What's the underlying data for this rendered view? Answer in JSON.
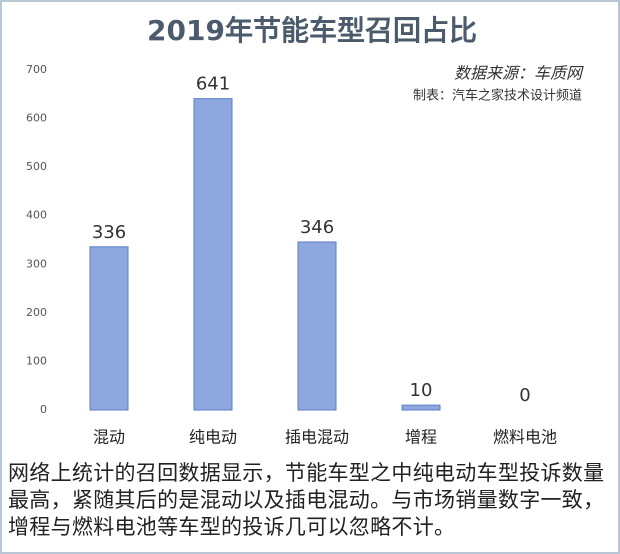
{
  "chart_data": {
    "type": "bar",
    "title": "2019年节能车型召回占比",
    "annotations": [
      "数据来源：车质网",
      "制表：汽车之家技术设计频道"
    ],
    "categories": [
      "混动",
      "纯电动",
      "插电混动",
      "增程",
      "燃料电池"
    ],
    "values": [
      336,
      641,
      346,
      10,
      0
    ],
    "color": "#8ea7de",
    "ylim": [
      0,
      700
    ],
    "yticks": [
      0,
      100,
      200,
      300,
      400,
      500,
      600,
      700
    ],
    "grid": false,
    "caption": "网络上统计的召回数据显示，节能车型之中纯电动车型投诉数量最高，紧随其后的是混动以及插电混动。与市场销量数字一致，增程与燃料电池等车型的投诉几可以忽略不计。"
  }
}
